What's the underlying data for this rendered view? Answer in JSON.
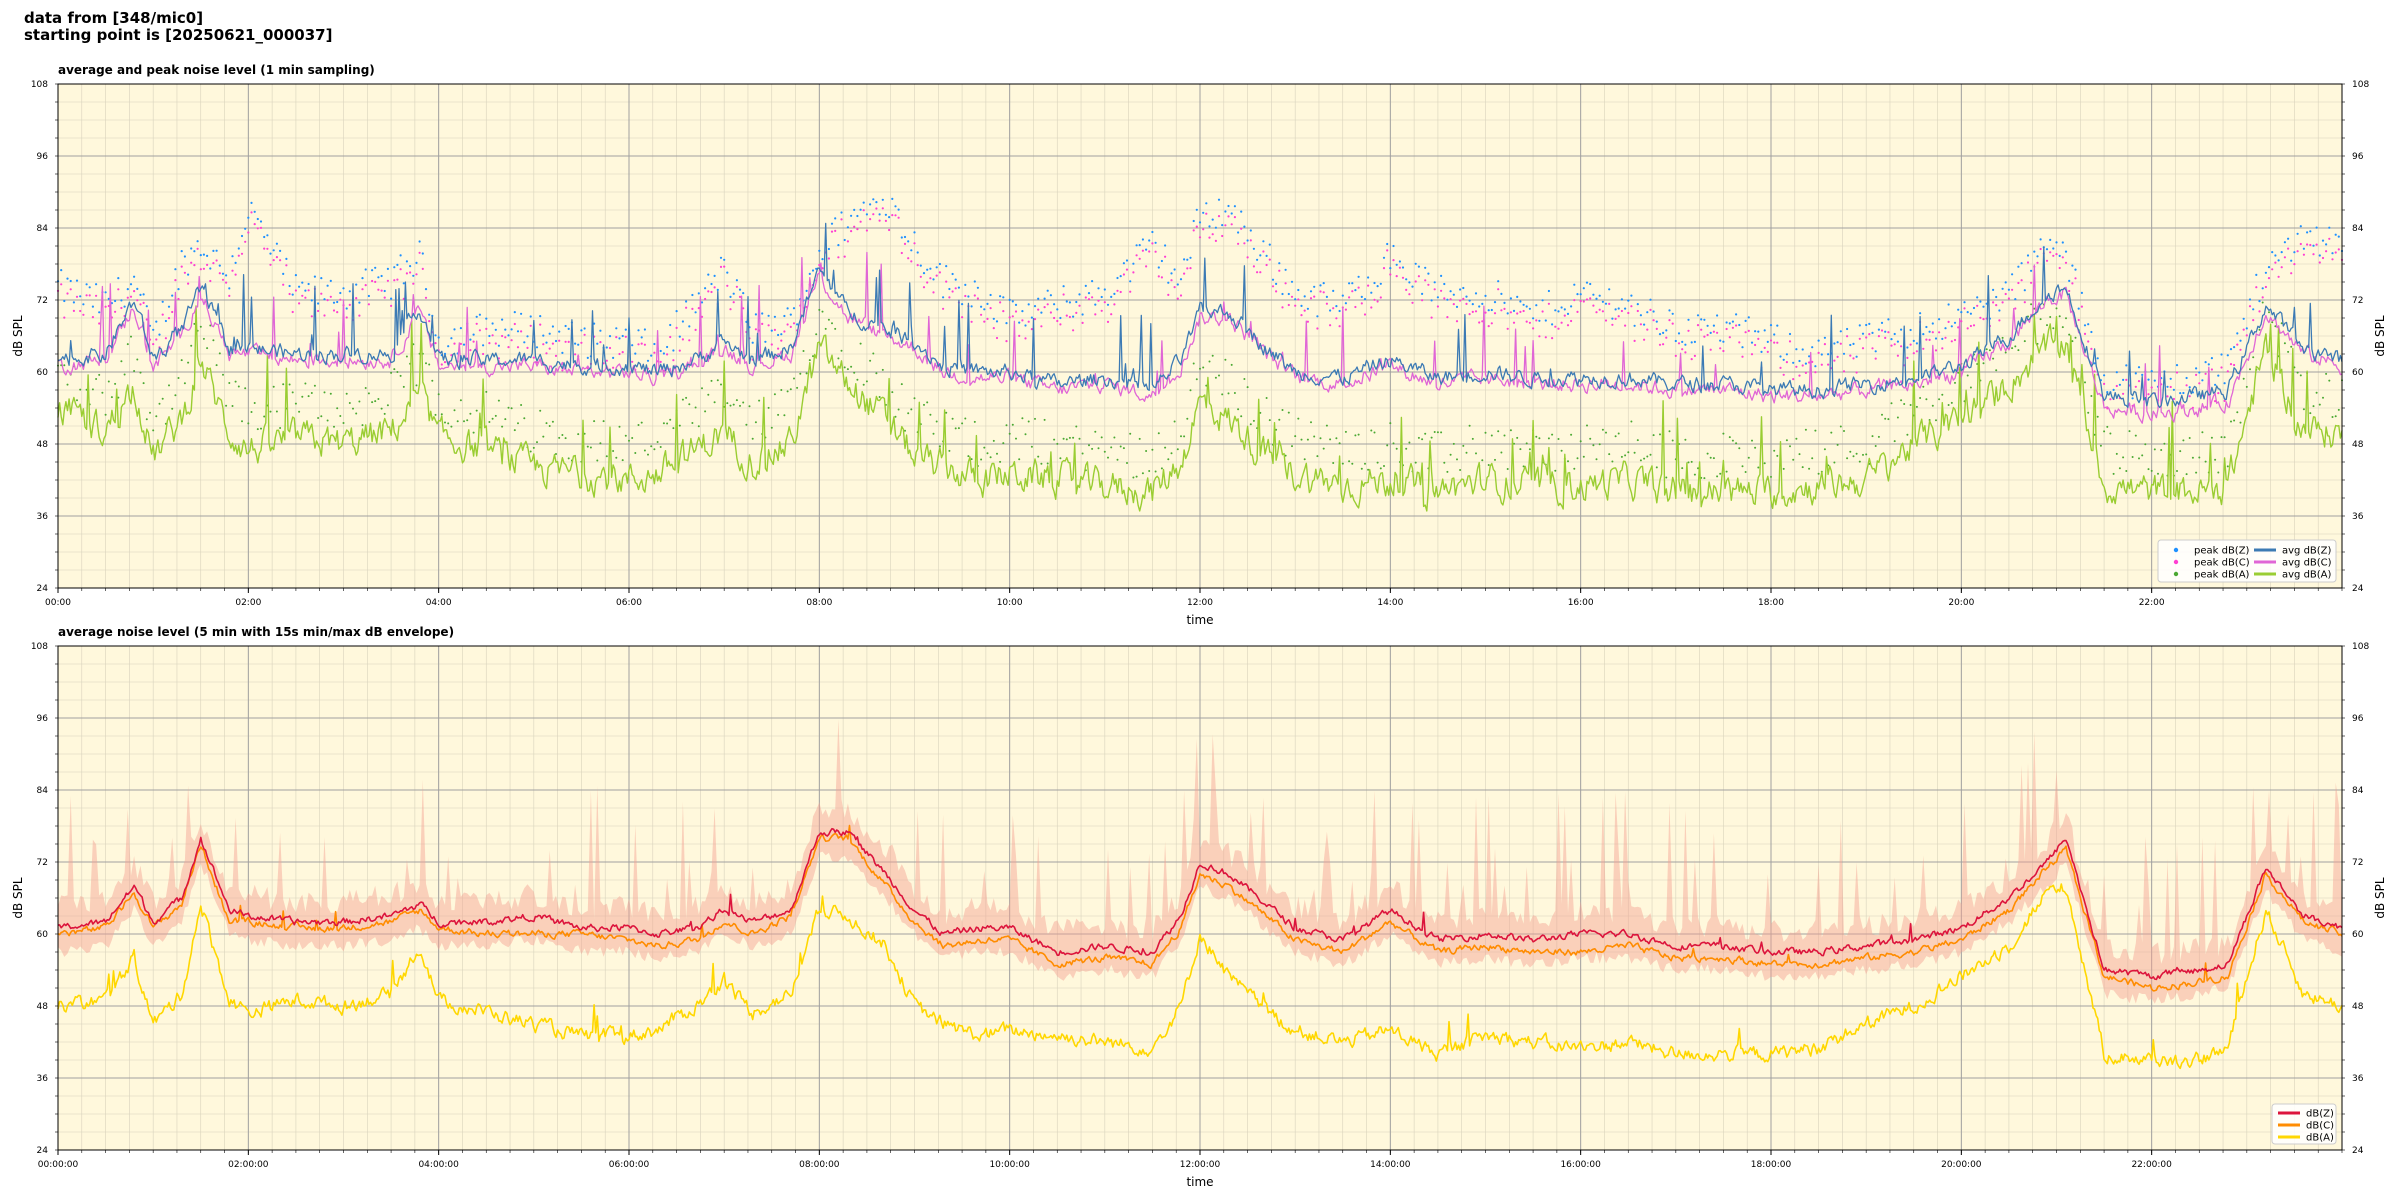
{
  "header": {
    "line1": "data from [348/mic0]",
    "line2": "starting point is [20250621_000037]"
  },
  "colors": {
    "plot_bg": "#fff8dc",
    "grid_major": "#a0a0a0",
    "grid_minor": "#d8d2bc",
    "peak_z": "#1e90ff",
    "peak_c": "#ff3fd2",
    "peak_a": "#4aa832",
    "avg_z": "#3c7ab4",
    "avg_c": "#e066d6",
    "avg_a": "#9acd32",
    "db_z": "#dc143c",
    "db_c": "#ff8c00",
    "db_a": "#ffd700",
    "envelope": "#f4a090"
  },
  "chart_data": [
    {
      "type": "line",
      "title": "average and peak noise level (1 min sampling)",
      "xlabel": "time",
      "ylabel": "dB SPL",
      "xlim_hours": [
        0,
        24
      ],
      "ylim": [
        24,
        108
      ],
      "yticks": [
        "24",
        "36",
        "48",
        "60",
        "72",
        "84",
        "96",
        "108"
      ],
      "xtick_labels": [
        "00:00",
        "02:00",
        "04:00",
        "06:00",
        "08:00",
        "10:00",
        "12:00",
        "14:00",
        "16:00",
        "18:00",
        "20:00",
        "22:00"
      ],
      "grid": true,
      "legend_position": "bottom-right",
      "legend": [
        {
          "label": "peak dB(Z)",
          "kind": "dot",
          "color_key": "peak_z"
        },
        {
          "label": "peak dB(C)",
          "kind": "dot",
          "color_key": "peak_c"
        },
        {
          "label": "peak dB(A)",
          "kind": "dot",
          "color_key": "peak_a"
        },
        {
          "label": "avg dB(Z)",
          "kind": "line",
          "color_key": "avg_z"
        },
        {
          "label": "avg dB(C)",
          "kind": "line",
          "color_key": "avg_c"
        },
        {
          "label": "avg dB(A)",
          "kind": "line",
          "color_key": "avg_a"
        }
      ],
      "x_hours": [
        0,
        0.5,
        0.8,
        1.0,
        1.3,
        1.5,
        1.8,
        2.0,
        2.5,
        3.0,
        3.5,
        3.8,
        4.0,
        4.5,
        5.0,
        5.5,
        6.0,
        6.3,
        6.7,
        7.0,
        7.3,
        7.7,
        8.0,
        8.3,
        8.7,
        9.0,
        9.3,
        9.7,
        10.0,
        10.5,
        11.0,
        11.5,
        11.8,
        12.0,
        12.3,
        12.7,
        13.0,
        13.5,
        14.0,
        14.5,
        15.0,
        15.5,
        16.0,
        16.5,
        17.0,
        17.5,
        18.0,
        18.5,
        19.0,
        19.5,
        20.0,
        20.5,
        20.9,
        21.1,
        21.5,
        22.0,
        22.5,
        22.8,
        23.2,
        23.6,
        24.0
      ],
      "series": [
        {
          "name": "avg dB(Z)",
          "color_key": "avg_z",
          "values": [
            62,
            63,
            72,
            62,
            67,
            74,
            64,
            64,
            63,
            63,
            63,
            71,
            62,
            62,
            62,
            61,
            61,
            60,
            62,
            65,
            62,
            64,
            77,
            70,
            67,
            65,
            61,
            60,
            60,
            58,
            59,
            57,
            62,
            70,
            70,
            64,
            60,
            59,
            62,
            59,
            60,
            59,
            59,
            59,
            58,
            58,
            57,
            57,
            58,
            59,
            61,
            66,
            73,
            74,
            56,
            55,
            56,
            57,
            71,
            64,
            62
          ]
        },
        {
          "name": "avg dB(C)",
          "color_key": "avg_c",
          "values": [
            61,
            62,
            71,
            61,
            66,
            73,
            63,
            63,
            62,
            62,
            62,
            70,
            61,
            61,
            61,
            60,
            60,
            59,
            61,
            64,
            61,
            63,
            76,
            69,
            66,
            64,
            60,
            59,
            59,
            57,
            58,
            56,
            61,
            69,
            69,
            63,
            59,
            58,
            61,
            58,
            59,
            58,
            58,
            58,
            57,
            57,
            56,
            56,
            57,
            58,
            60,
            65,
            72,
            73,
            54,
            53,
            54,
            55,
            70,
            63,
            61
          ]
        },
        {
          "name": "avg dB(A)",
          "color_key": "avg_a",
          "values": [
            54,
            50,
            58,
            46,
            52,
            62,
            50,
            47,
            49,
            48,
            50,
            56,
            49,
            47,
            44,
            43,
            42,
            43,
            47,
            50,
            45,
            48,
            64,
            58,
            52,
            46,
            44,
            42,
            43,
            42,
            41,
            40,
            45,
            55,
            52,
            46,
            43,
            41,
            42,
            40,
            42,
            41,
            41,
            42,
            40,
            40,
            40,
            41,
            42,
            48,
            52,
            58,
            64,
            65,
            41,
            40,
            40,
            41,
            64,
            50,
            50
          ]
        },
        {
          "name": "peak dB(Z)",
          "color_key": "peak_z",
          "values": [
            73,
            70,
            74,
            64,
            77,
            80,
            75,
            86,
            72,
            72,
            74,
            78,
            64,
            66,
            66,
            64,
            64,
            62,
            70,
            76,
            66,
            67,
            79,
            84,
            88,
            80,
            74,
            72,
            68,
            70,
            72,
            80,
            74,
            85,
            86,
            78,
            72,
            70,
            78,
            72,
            72,
            68,
            72,
            70,
            66,
            66,
            64,
            62,
            64,
            66,
            68,
            72,
            80,
            78,
            58,
            57,
            58,
            60,
            76,
            82,
            80
          ]
        }
      ]
    },
    {
      "type": "line",
      "title": "average noise level (5 min with 15s min/max dB envelope)",
      "xlabel": "time",
      "ylabel": "dB SPL",
      "xlim_hours": [
        0,
        24
      ],
      "ylim": [
        24,
        108
      ],
      "yticks": [
        "24",
        "36",
        "48",
        "60",
        "72",
        "84",
        "96",
        "108"
      ],
      "xtick_labels": [
        "00:00:00",
        "02:00:00",
        "04:00:00",
        "06:00:00",
        "08:00:00",
        "10:00:00",
        "12:00:00",
        "14:00:00",
        "16:00:00",
        "18:00:00",
        "20:00:00",
        "22:00:00"
      ],
      "grid": true,
      "legend_position": "bottom-right",
      "legend": [
        {
          "label": "dB(Z)",
          "kind": "line",
          "color_key": "db_z"
        },
        {
          "label": "dB(C)",
          "kind": "line",
          "color_key": "db_c"
        },
        {
          "label": "dB(A)",
          "kind": "line",
          "color_key": "db_a"
        }
      ],
      "x_hours": [
        0,
        0.5,
        0.8,
        1.0,
        1.3,
        1.5,
        1.8,
        2.0,
        2.5,
        3.0,
        3.5,
        3.8,
        4.0,
        4.5,
        5.0,
        5.5,
        6.0,
        6.3,
        6.7,
        7.0,
        7.3,
        7.7,
        8.0,
        8.3,
        8.7,
        9.0,
        9.3,
        9.7,
        10.0,
        10.5,
        11.0,
        11.5,
        11.8,
        12.0,
        12.3,
        12.7,
        13.0,
        13.5,
        14.0,
        14.5,
        15.0,
        15.5,
        16.0,
        16.5,
        17.0,
        17.5,
        18.0,
        18.5,
        19.0,
        19.5,
        20.0,
        20.5,
        20.9,
        21.1,
        21.5,
        22.0,
        22.5,
        22.8,
        23.2,
        23.6,
        24.0
      ],
      "series": [
        {
          "name": "dB(Z)",
          "color_key": "db_z",
          "values": [
            61,
            62,
            68,
            62,
            66,
            76,
            64,
            63,
            62,
            62,
            63,
            65,
            62,
            62,
            63,
            61,
            61,
            60,
            61,
            64,
            62,
            64,
            77,
            77,
            70,
            64,
            60,
            61,
            61,
            57,
            58,
            57,
            63,
            72,
            70,
            65,
            61,
            59,
            64,
            59,
            60,
            59,
            60,
            60,
            58,
            58,
            57,
            57,
            58,
            59,
            61,
            66,
            72,
            76,
            54,
            53,
            54,
            55,
            71,
            63,
            61
          ]
        },
        {
          "name": "dB(C)",
          "color_key": "db_c",
          "values": [
            60,
            61,
            67,
            61,
            65,
            75,
            62,
            62,
            61,
            61,
            62,
            64,
            61,
            60,
            60,
            60,
            59,
            58,
            59,
            62,
            60,
            63,
            76,
            76,
            68,
            62,
            58,
            59,
            59,
            55,
            56,
            55,
            61,
            70,
            68,
            63,
            59,
            57,
            62,
            57,
            58,
            57,
            57,
            58,
            56,
            56,
            55,
            55,
            56,
            57,
            59,
            64,
            71,
            74,
            53,
            51,
            52,
            53,
            70,
            62,
            60
          ]
        },
        {
          "name": "dB(A)",
          "color_key": "db_a",
          "values": [
            48,
            49,
            56,
            45,
            50,
            65,
            49,
            47,
            49,
            48,
            50,
            58,
            49,
            47,
            45,
            43,
            43,
            44,
            48,
            52,
            47,
            50,
            64,
            63,
            58,
            48,
            45,
            43,
            44,
            43,
            42,
            41,
            48,
            60,
            53,
            47,
            44,
            42,
            44,
            40,
            43,
            42,
            41,
            42,
            40,
            40,
            40,
            41,
            45,
            48,
            53,
            58,
            67,
            68,
            40,
            39,
            39,
            41,
            64,
            50,
            48
          ]
        }
      ]
    }
  ]
}
